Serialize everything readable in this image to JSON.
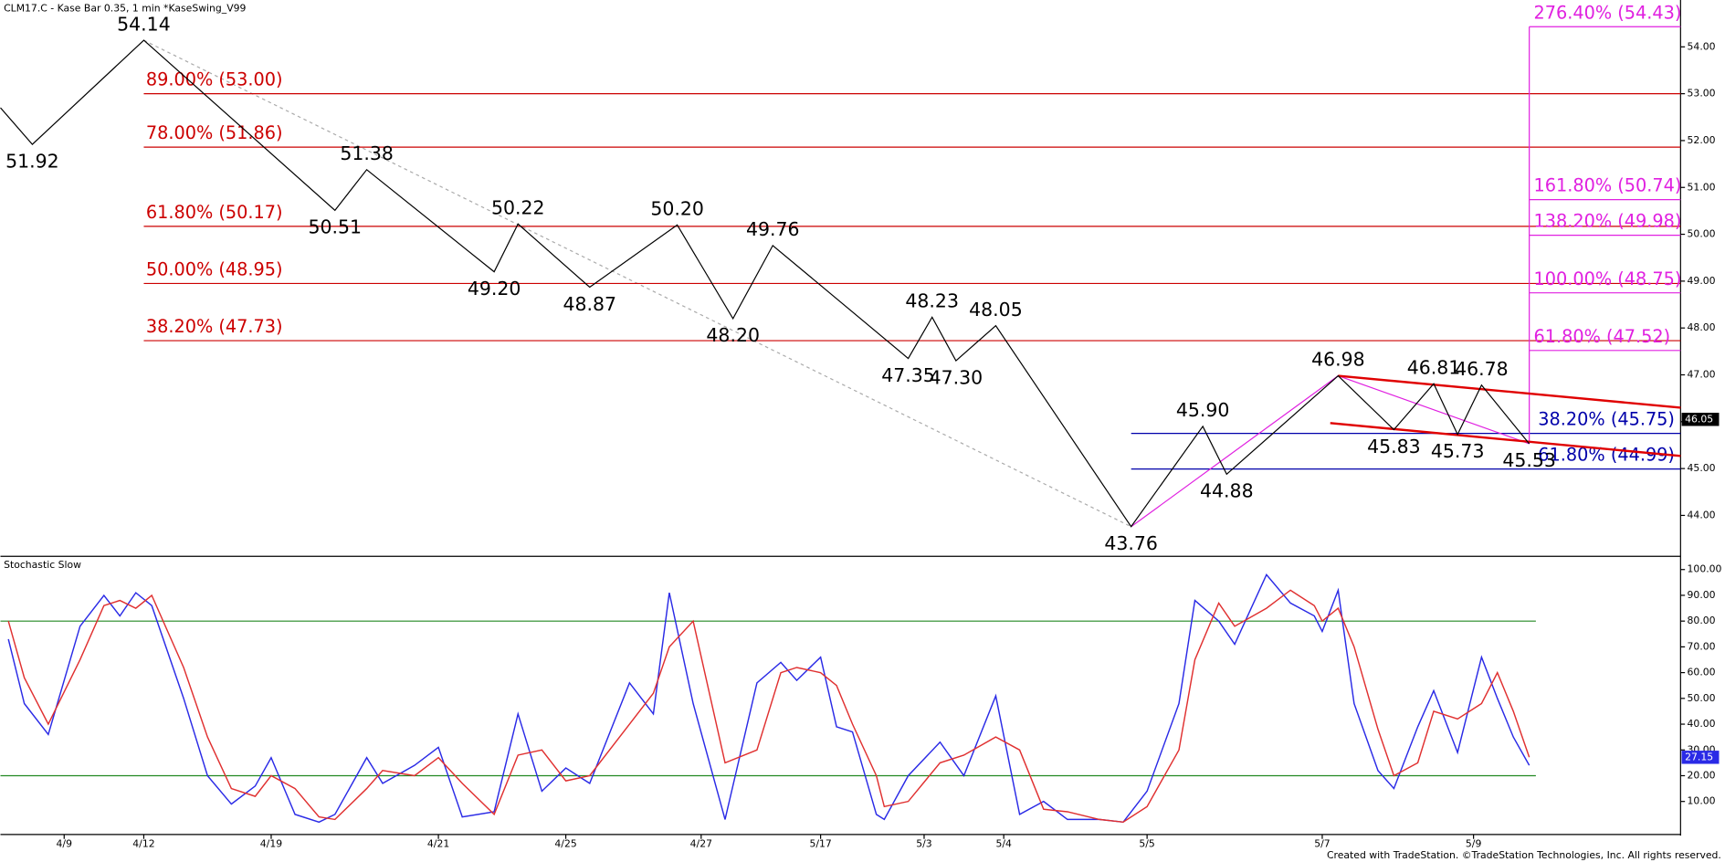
{
  "chart_data": [
    {
      "type": "swing",
      "title": "CLM17.C - Kase Bar 0.35, 1 min  *KaseSwing_V99",
      "x": [
        0,
        4,
        18,
        42,
        46,
        62,
        65,
        74,
        85,
        92,
        97,
        114,
        117,
        120,
        125,
        142,
        151,
        154,
        168,
        175,
        180,
        183,
        186,
        192
      ],
      "values": [
        52.7,
        51.92,
        54.14,
        50.51,
        51.38,
        49.2,
        50.22,
        48.87,
        50.2,
        48.2,
        49.76,
        47.35,
        48.23,
        47.3,
        48.05,
        43.76,
        45.9,
        44.88,
        46.98,
        45.83,
        46.81,
        45.73,
        46.78,
        45.53
      ],
      "value_labels": [
        null,
        "51.92",
        "54.14",
        "50.51",
        "51.38",
        "49.20",
        "50.22",
        "48.87",
        "50.20",
        "48.20",
        "49.76",
        "47.35",
        "48.23",
        "47.30",
        "48.05",
        "43.76",
        "45.90",
        "44.88",
        "46.98",
        "45.83",
        "46.81",
        "45.73",
        "46.78",
        "45.53"
      ],
      "color": "#000000",
      "xlim": [
        0,
        211
      ],
      "xticks": [
        {
          "value": 8,
          "label": "4/9"
        },
        {
          "value": 18,
          "label": "4/12"
        },
        {
          "value": 34,
          "label": "4/19"
        },
        {
          "value": 55,
          "label": "4/21"
        },
        {
          "value": 71,
          "label": "4/25"
        },
        {
          "value": 88,
          "label": "4/27"
        },
        {
          "value": 103,
          "label": "5/17"
        },
        {
          "value": 116,
          "label": "5/3"
        },
        {
          "value": 126,
          "label": "5/4"
        },
        {
          "value": 144,
          "label": "5/5"
        },
        {
          "value": 166,
          "label": "5/7"
        },
        {
          "value": 185,
          "label": "5/9"
        }
      ],
      "ylim": [
        43.15,
        55.0
      ],
      "yticks": [
        {
          "value": 44,
          "label": "44.00"
        },
        {
          "value": 45,
          "label": "45.00"
        },
        {
          "value": 46,
          "label": "46.00"
        },
        {
          "value": 47,
          "label": "47.00"
        },
        {
          "value": 48,
          "label": "48.00"
        },
        {
          "value": 49,
          "label": "49.00"
        },
        {
          "value": 50,
          "label": "50.00"
        },
        {
          "value": 51,
          "label": "51.00"
        },
        {
          "value": 52,
          "label": "52.00"
        },
        {
          "value": 53,
          "label": "53.00"
        },
        {
          "value": 54,
          "label": "54.00"
        }
      ],
      "retracements": {
        "color": "#cc0000",
        "levels": [
          {
            "value": 53.0,
            "label": "89.00% (53.00)"
          },
          {
            "value": 51.86,
            "label": "78.00% (51.86)"
          },
          {
            "value": 50.17,
            "label": "61.80% (50.17)"
          },
          {
            "value": 48.95,
            "label": "50.00% (48.95)"
          },
          {
            "value": 47.73,
            "label": "38.20% (47.73)"
          }
        ]
      },
      "projections": {
        "color": "#e020e0",
        "levels": [
          {
            "value": 54.43,
            "label": "276.40% (54.43)"
          },
          {
            "value": 50.74,
            "label": "161.80% (50.74)"
          },
          {
            "value": 49.98,
            "label": "138.20% (49.98)"
          },
          {
            "value": 48.75,
            "label": "100.00% (48.75)"
          },
          {
            "value": 47.52,
            "label": "61.80% (47.52)"
          }
        ]
      },
      "extensions": {
        "color": "#0000aa",
        "levels": [
          {
            "value": 45.75,
            "label": "38.20% (45.75)"
          },
          {
            "value": 44.99,
            "label": "61.80% (44.99)"
          }
        ]
      },
      "trendlines": {
        "color": "#e00000",
        "lines": [
          {
            "x": [
              168,
              211
            ],
            "values": [
              46.98,
              46.3
            ]
          },
          {
            "x": [
              167,
              211
            ],
            "values": [
              45.97,
              45.27
            ]
          }
        ]
      },
      "last_value": 46.05
    },
    {
      "type": "line",
      "title": "Stochastic Slow",
      "x": [
        1,
        3,
        6,
        10,
        13,
        15,
        17,
        19,
        23,
        26,
        29,
        32,
        34,
        37,
        40,
        42,
        46,
        48,
        52,
        55,
        58,
        62,
        65,
        68,
        71,
        74,
        79,
        82,
        84,
        87,
        91,
        95,
        98,
        100,
        103,
        105,
        107,
        110,
        111,
        114,
        118,
        121,
        125,
        128,
        131,
        134,
        138,
        141,
        144,
        148,
        150,
        153,
        155,
        159,
        162,
        165,
        166,
        168,
        170,
        173,
        175,
        178,
        180,
        183,
        186,
        188,
        190,
        192
      ],
      "series": [
        {
          "color": "#2a2ae6",
          "values": [
            73,
            48,
            36,
            78,
            90,
            82,
            91,
            86,
            50,
            20,
            9,
            16,
            27,
            5,
            2,
            5,
            27,
            17,
            24,
            31,
            4,
            6,
            44,
            14,
            23,
            17,
            56,
            44,
            91,
            48,
            3,
            56,
            64,
            57,
            66,
            39,
            37,
            5,
            3,
            20,
            33,
            20,
            51,
            5,
            10,
            3,
            3,
            2,
            14,
            48,
            88,
            80,
            71,
            98,
            87,
            82,
            76,
            92,
            48,
            22,
            15,
            39,
            53,
            29,
            66,
            50,
            35,
            24
          ]
        },
        {
          "color": "#e03030",
          "values": [
            80,
            58,
            40,
            65,
            86,
            88,
            85,
            90,
            62,
            35,
            15,
            12,
            20,
            15,
            4,
            3,
            15,
            22,
            20,
            27,
            17,
            5,
            28,
            30,
            18,
            20,
            40,
            52,
            70,
            80,
            25,
            30,
            60,
            62,
            60,
            55,
            40,
            20,
            8,
            10,
            25,
            28,
            35,
            30,
            7,
            6,
            3,
            2,
            8,
            30,
            65,
            87,
            78,
            85,
            92,
            86,
            80,
            85,
            70,
            38,
            20,
            25,
            45,
            42,
            48,
            60,
            45,
            27.15
          ]
        }
      ],
      "levels": [
        80,
        20
      ],
      "level_color": "#228822",
      "xlim": [
        0,
        211
      ],
      "ylim": [
        -2.4,
        104.7
      ],
      "yticks": [
        {
          "value": 10,
          "label": "10.00"
        },
        {
          "value": 20,
          "label": "20.00"
        },
        {
          "value": 30,
          "label": "30.00"
        },
        {
          "value": 40,
          "label": "40.00"
        },
        {
          "value": 50,
          "label": "50.00"
        },
        {
          "value": 60,
          "label": "60.00"
        },
        {
          "value": 70,
          "label": "70.00"
        },
        {
          "value": 80,
          "label": "80.00"
        },
        {
          "value": 90,
          "label": "90.00"
        },
        {
          "value": 100,
          "label": "100.00"
        }
      ]
    }
  ],
  "footer": "Created with TradeStation. ©TradeStation Technologies, Inc. All rights reserved."
}
